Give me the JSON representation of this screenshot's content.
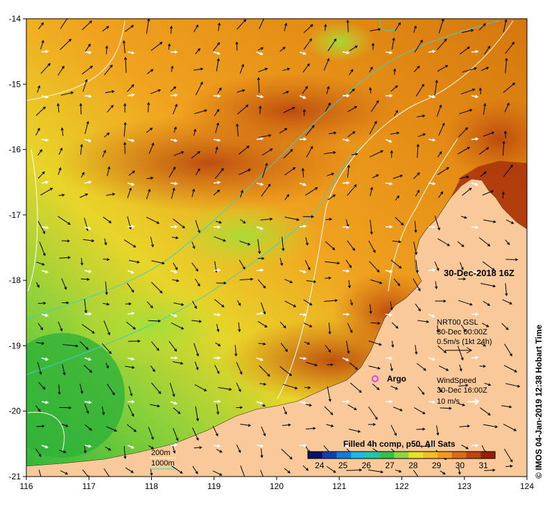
{
  "map": {
    "lon_ticks": [
      "116",
      "117",
      "118",
      "119",
      "120",
      "121",
      "122",
      "123",
      "124"
    ],
    "lat_ticks": [
      "-14",
      "-15",
      "-16",
      "-17",
      "-18",
      "-19",
      "-20",
      "-21"
    ],
    "lon_range": [
      116,
      124
    ],
    "lat_range": [
      -21,
      -14
    ],
    "timestamp": "30-Dec-2018 16Z",
    "currents": {
      "line1": "NRT00 GSL",
      "line2": "30-Dec 00:00Z",
      "line3": "0.5m/s (1kt 24h)"
    },
    "wind": {
      "line1": "WindSpeed",
      "line2": "30-Dec 16:00Z",
      "line3": "10 m/s"
    },
    "argo_label": "Argo",
    "isobath_200": "200m",
    "isobath_1000": "1000m",
    "colorbar": {
      "title": "Filled 4h comp, p50, All Sats",
      "labels": [
        "24",
        "25",
        "26",
        "27",
        "28",
        "29",
        "30",
        "31"
      ],
      "range": [
        23.5,
        31.5
      ]
    },
    "credit": "© IMOS 04-Jan-2019 12:38 Hobart Time",
    "colors": {
      "land": "#f9c99a",
      "isobath_200": "#ffffff",
      "isobath_1000": "#3fd1c2",
      "argo": "#e83fe3"
    }
  }
}
